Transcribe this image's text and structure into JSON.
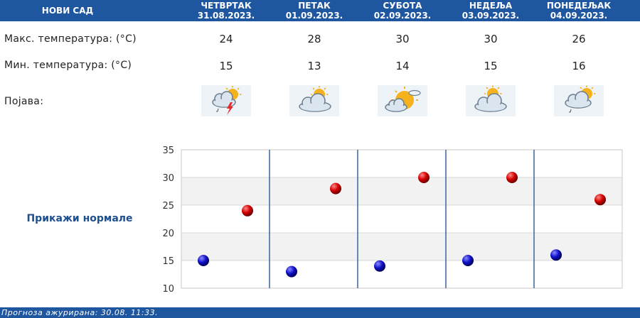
{
  "header": {
    "city": "НОВИ САД"
  },
  "days": [
    {
      "name": "ЧЕТВРТАК",
      "date": "31.08.2023.",
      "max": 24,
      "min": 15,
      "icon": "partly-cloudy-thunder-icon"
    },
    {
      "name": "ПЕТАК",
      "date": "01.09.2023.",
      "max": 28,
      "min": 13,
      "icon": "partly-cloudy-icon"
    },
    {
      "name": "СУБОТА",
      "date": "02.09.2023.",
      "max": 30,
      "min": 14,
      "icon": "mostly-sunny-icon"
    },
    {
      "name": "НЕДЕЉА",
      "date": "03.09.2023.",
      "max": 30,
      "min": 15,
      "icon": "partly-cloudy-icon"
    },
    {
      "name": "ПОНЕДЕЉАК",
      "date": "04.09.2023.",
      "max": 26,
      "min": 16,
      "icon": "partly-cloudy-rain-icon"
    }
  ],
  "labels": {
    "max_temp": "Макс. температура: (°C)",
    "min_temp": "Мин. температура: (°C)",
    "phenomenon": "Појава:"
  },
  "normals_link": "Прикажи нормале",
  "chart_data": {
    "type": "scatter",
    "categories": [
      "31.08.2023.",
      "01.09.2023.",
      "02.09.2023.",
      "03.09.2023.",
      "04.09.2023."
    ],
    "series": [
      {
        "name": "",
        "color": "#c00000",
        "values": [
          24,
          28,
          30,
          30,
          26
        ]
      },
      {
        "name": "",
        "color": "#0a0aa8",
        "values": [
          15,
          13,
          14,
          15,
          16
        ]
      }
    ],
    "ylim": [
      10,
      35
    ],
    "yticks": [
      10,
      15,
      20,
      25,
      30,
      35
    ],
    "grid": true,
    "legend": "none"
  },
  "colors": {
    "header_bg": "#1e56a0",
    "link": "#1e4f8f",
    "band": "#f2f2f2"
  },
  "footer": {
    "updated": "Прогноза ажурирана:  30.08.  11:33."
  }
}
